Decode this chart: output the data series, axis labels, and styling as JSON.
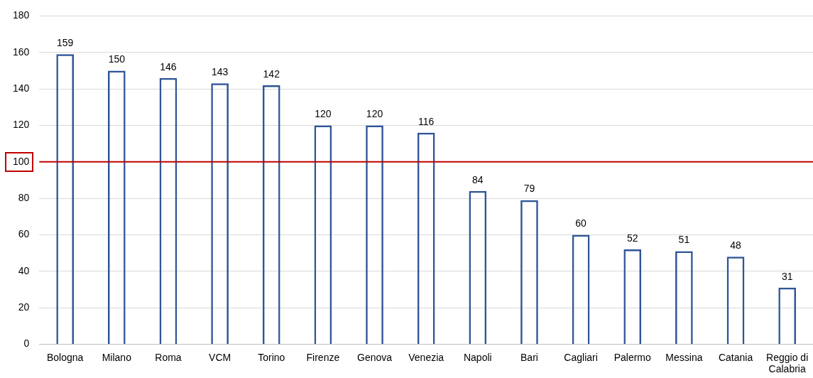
{
  "chart_data": {
    "type": "bar",
    "categories": [
      "Bologna",
      "Milano",
      "Roma",
      "VCM",
      "Torino",
      "Firenze",
      "Genova",
      "Venezia",
      "Napoli",
      "Bari",
      "Cagliari",
      "Palermo",
      "Messina",
      "Catania",
      "Reggio di Calabria"
    ],
    "values": [
      159,
      150,
      146,
      143,
      142,
      120,
      120,
      116,
      84,
      79,
      60,
      52,
      51,
      48,
      31
    ],
    "color": "#2f5597",
    "ylim": [
      0,
      180
    ],
    "yticks": [
      0,
      20,
      40,
      60,
      80,
      100,
      120,
      140,
      160,
      180
    ],
    "grid": "y",
    "legend": false,
    "data_labels": true,
    "ref_lines": [
      {
        "axis": "y",
        "value": 100,
        "color": "#c00000"
      }
    ]
  }
}
